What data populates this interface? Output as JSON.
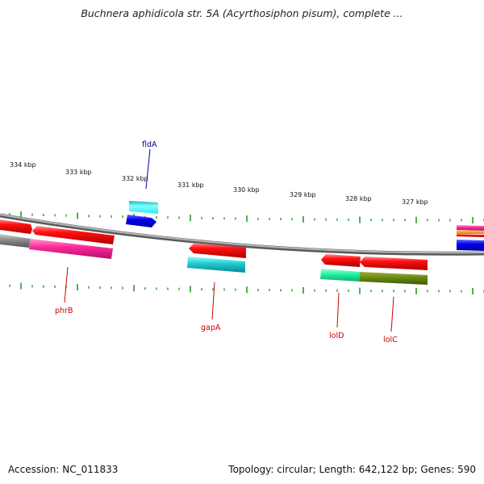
{
  "title": "Buchnera aphidicola str. 5A (Acyrthosiphon pisum), complete ...",
  "footer": {
    "accession": "Accession: NC_011833",
    "stats": "Topology: circular; Length: 642,122 bp; Genes: 590"
  },
  "scale_labels": [
    "334 kbp",
    "333 kbp",
    "332 kbp",
    "331 kbp",
    "330 kbp",
    "329 kbp",
    "328 kbp",
    "327 kbp"
  ],
  "gene_labels": [
    {
      "name": "fldA",
      "color": "#0000aa"
    },
    {
      "name": "phrB",
      "color": "#cc0000"
    },
    {
      "name": "gapA",
      "color": "#cc0000"
    },
    {
      "name": "lolD",
      "color": "#cc0000"
    },
    {
      "name": "lolC",
      "color": "#cc0000"
    }
  ],
  "colors": {
    "cds": "#ff1010",
    "feature_magenta": "#ff2a9a",
    "feature_cyan": "#20c8d0",
    "feature_blue": "#0000ee",
    "feature_green": "#20f0a0",
    "feature_olive": "#6a8a10",
    "backbone": "#8a8a8a",
    "ticks": "#2a9a2a"
  }
}
